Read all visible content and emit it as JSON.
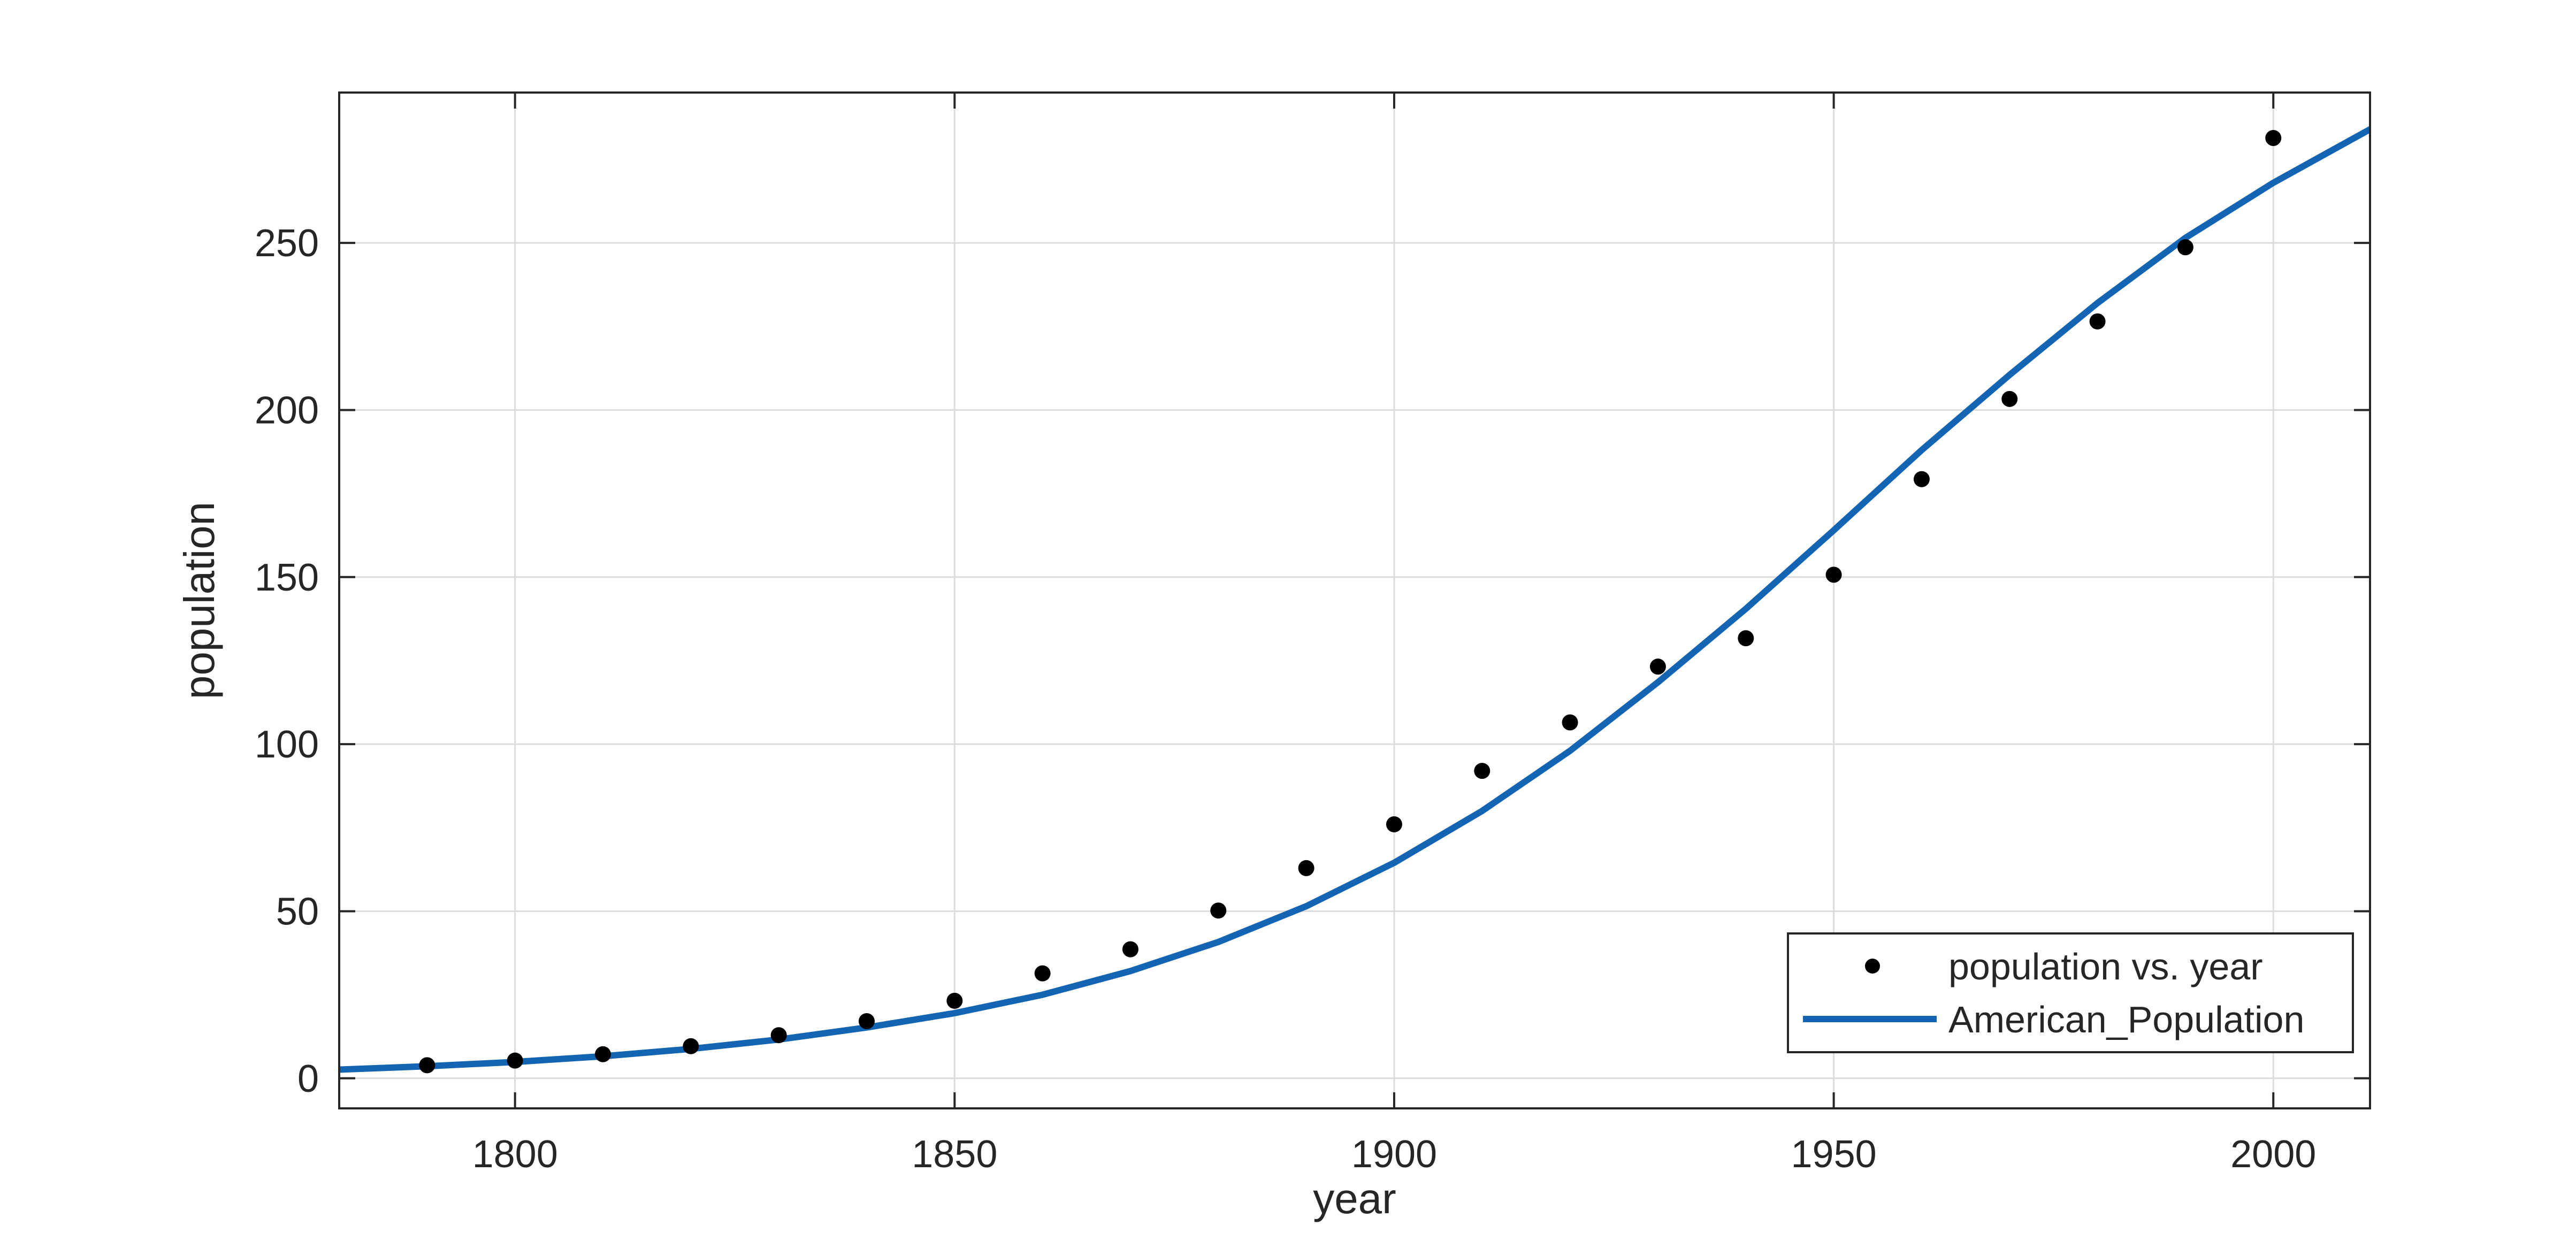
{
  "chart_data": {
    "type": "scatter",
    "title": "",
    "xlabel": "year",
    "ylabel": "population",
    "xlim": [
      1780,
      2011
    ],
    "ylim": [
      -9,
      295
    ],
    "xticks": [
      1800,
      1850,
      1900,
      1950,
      2000
    ],
    "yticks": [
      0,
      50,
      100,
      150,
      200,
      250
    ],
    "xtick_labels": [
      "1800",
      "1850",
      "1900",
      "1950",
      "2000"
    ],
    "ytick_labels": [
      "0",
      "50",
      "100",
      "150",
      "200",
      "250"
    ],
    "grid": true,
    "legend_location": "bottom-right",
    "series": [
      {
        "name": "population vs. year",
        "kind": "scatter",
        "color": "#000000",
        "x": [
          1790,
          1800,
          1810,
          1820,
          1830,
          1840,
          1850,
          1860,
          1870,
          1880,
          1890,
          1900,
          1910,
          1920,
          1930,
          1940,
          1950,
          1960,
          1970,
          1980,
          1990,
          2000
        ],
        "y": [
          3.9,
          5.3,
          7.2,
          9.6,
          12.9,
          17.1,
          23.2,
          31.4,
          38.6,
          50.2,
          62.9,
          76.0,
          92.0,
          106.5,
          123.2,
          131.7,
          150.7,
          179.3,
          203.3,
          226.5,
          248.7,
          281.4
        ]
      },
      {
        "name": "American_Population",
        "kind": "line",
        "color": "#1464b4",
        "x": [
          1780,
          1790,
          1800,
          1810,
          1820,
          1830,
          1840,
          1850,
          1860,
          1870,
          1880,
          1890,
          1900,
          1910,
          1920,
          1930,
          1940,
          1950,
          1960,
          1970,
          1980,
          1990,
          2000,
          2011
        ],
        "y": [
          2.6,
          3.6,
          4.9,
          6.6,
          8.8,
          11.6,
          15.2,
          19.5,
          25.0,
          32.1,
          40.8,
          51.5,
          64.5,
          80.0,
          98.0,
          118.5,
          140.5,
          164.0,
          188.0,
          210.5,
          232.0,
          251.5,
          268.0,
          284.0
        ]
      }
    ]
  }
}
